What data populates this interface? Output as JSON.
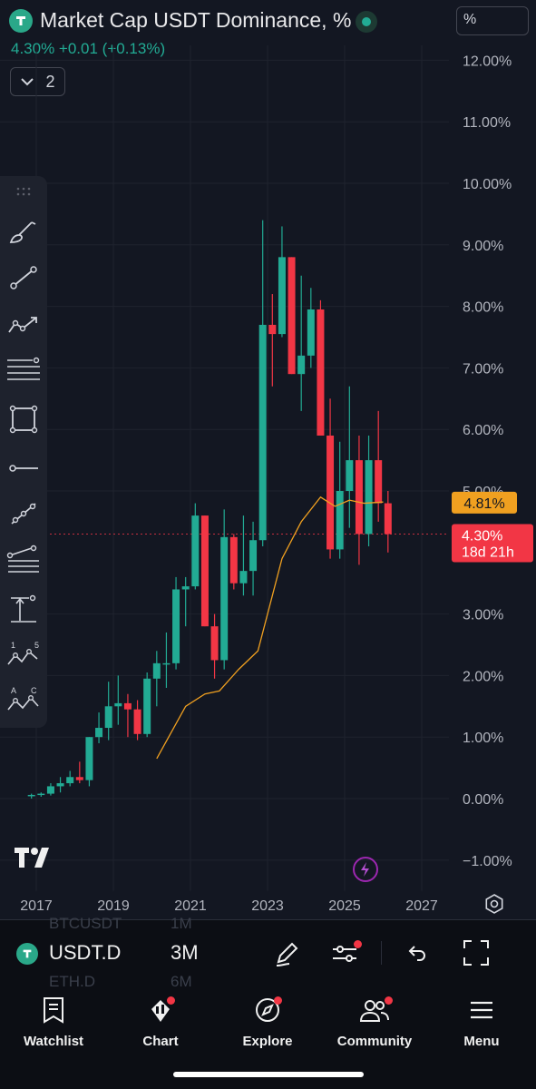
{
  "header": {
    "title": "Market Cap USDT Dominance, %",
    "price_line": "4.30%  +0.01 (+0.13%)",
    "scale_button": "%",
    "indicators_count": "2"
  },
  "chart_data": {
    "type": "candlestick",
    "symbol": "USDT.D",
    "interval": "3M",
    "y_ticks": [
      "12.00%",
      "11.00%",
      "10.00%",
      "9.00%",
      "8.00%",
      "7.00%",
      "6.00%",
      "5.00%",
      "3.00%",
      "2.00%",
      "1.00%",
      "0.00%",
      "−1.00%"
    ],
    "y_tick_values": [
      12,
      11,
      10,
      9,
      8,
      7,
      6,
      5,
      3,
      2,
      1,
      0,
      -1
    ],
    "x_ticks": [
      "2017",
      "2019",
      "2021",
      "2023",
      "2025",
      "2027"
    ],
    "x_tick_years": [
      2017,
      2019,
      2021,
      2023,
      2025,
      2027
    ],
    "ylim": [
      -1.5,
      12.5
    ],
    "candles": [
      {
        "t": 2016.875,
        "o": 0.05,
        "h": 0.08,
        "l": 0.0,
        "c": 0.06
      },
      {
        "t": 2017.125,
        "o": 0.06,
        "h": 0.1,
        "l": 0.03,
        "c": 0.08
      },
      {
        "t": 2017.375,
        "o": 0.08,
        "h": 0.25,
        "l": 0.05,
        "c": 0.2
      },
      {
        "t": 2017.625,
        "o": 0.2,
        "h": 0.35,
        "l": 0.1,
        "c": 0.25
      },
      {
        "t": 2017.875,
        "o": 0.25,
        "h": 0.45,
        "l": 0.2,
        "c": 0.35
      },
      {
        "t": 2018.125,
        "o": 0.35,
        "h": 0.6,
        "l": 0.25,
        "c": 0.3
      },
      {
        "t": 2018.375,
        "o": 0.3,
        "h": 1.0,
        "l": 0.2,
        "c": 1.0
      },
      {
        "t": 2018.625,
        "o": 1.0,
        "h": 1.4,
        "l": 0.9,
        "c": 1.15
      },
      {
        "t": 2018.875,
        "o": 1.15,
        "h": 1.9,
        "l": 0.95,
        "c": 1.5
      },
      {
        "t": 2019.125,
        "o": 1.5,
        "h": 2.0,
        "l": 1.2,
        "c": 1.55
      },
      {
        "t": 2019.375,
        "o": 1.55,
        "h": 1.7,
        "l": 1.0,
        "c": 1.45
      },
      {
        "t": 2019.625,
        "o": 1.45,
        "h": 1.6,
        "l": 0.95,
        "c": 1.05
      },
      {
        "t": 2019.875,
        "o": 1.05,
        "h": 2.05,
        "l": 1.0,
        "c": 1.95
      },
      {
        "t": 2020.125,
        "o": 1.95,
        "h": 2.4,
        "l": 1.5,
        "c": 2.2
      },
      {
        "t": 2020.375,
        "o": 2.2,
        "h": 2.7,
        "l": 1.8,
        "c": 2.2
      },
      {
        "t": 2020.625,
        "o": 2.2,
        "h": 3.6,
        "l": 2.1,
        "c": 3.4
      },
      {
        "t": 2020.875,
        "o": 3.4,
        "h": 3.6,
        "l": 2.8,
        "c": 3.45
      },
      {
        "t": 2021.125,
        "o": 3.45,
        "h": 4.8,
        "l": 3.4,
        "c": 4.6
      },
      {
        "t": 2021.375,
        "o": 4.6,
        "h": 4.6,
        "l": 2.8,
        "c": 2.8
      },
      {
        "t": 2021.625,
        "o": 2.8,
        "h": 3.0,
        "l": 1.95,
        "c": 2.25
      },
      {
        "t": 2021.875,
        "o": 2.25,
        "h": 4.7,
        "l": 2.1,
        "c": 4.25
      },
      {
        "t": 2022.125,
        "o": 4.25,
        "h": 4.3,
        "l": 3.4,
        "c": 3.5
      },
      {
        "t": 2022.375,
        "o": 3.5,
        "h": 4.6,
        "l": 3.3,
        "c": 3.7
      },
      {
        "t": 2022.625,
        "o": 3.7,
        "h": 4.5,
        "l": 3.3,
        "c": 4.2
      },
      {
        "t": 2022.875,
        "o": 4.2,
        "h": 9.4,
        "l": 4.1,
        "c": 7.7
      },
      {
        "t": 2023.125,
        "o": 7.7,
        "h": 8.2,
        "l": 6.7,
        "c": 7.55
      },
      {
        "t": 2023.375,
        "o": 7.55,
        "h": 9.3,
        "l": 7.5,
        "c": 8.8
      },
      {
        "t": 2023.625,
        "o": 8.8,
        "h": 8.8,
        "l": 6.9,
        "c": 6.9
      },
      {
        "t": 2023.875,
        "o": 6.9,
        "h": 8.5,
        "l": 6.3,
        "c": 7.2
      },
      {
        "t": 2024.125,
        "o": 7.2,
        "h": 8.3,
        "l": 7.0,
        "c": 7.95
      },
      {
        "t": 2024.375,
        "o": 7.95,
        "h": 8.1,
        "l": 5.9,
        "c": 5.9
      },
      {
        "t": 2024.625,
        "o": 5.9,
        "h": 6.5,
        "l": 3.9,
        "c": 4.05
      },
      {
        "t": 2024.875,
        "o": 4.05,
        "h": 5.8,
        "l": 3.9,
        "c": 5.0
      },
      {
        "t": 2025.125,
        "o": 5.0,
        "h": 6.7,
        "l": 4.4,
        "c": 5.5
      },
      {
        "t": 2025.375,
        "o": 5.5,
        "h": 5.9,
        "l": 3.8,
        "c": 4.3
      },
      {
        "t": 2025.625,
        "o": 4.3,
        "h": 5.9,
        "l": 4.1,
        "c": 5.5
      },
      {
        "t": 2025.875,
        "o": 5.5,
        "h": 6.3,
        "l": 4.5,
        "c": 4.8
      },
      {
        "t": 2026.125,
        "o": 4.8,
        "h": 5.0,
        "l": 4.0,
        "c": 4.3
      }
    ],
    "ma": {
      "color": "#f0a020",
      "points": [
        [
          2020.125,
          0.65
        ],
        [
          2020.875,
          1.5
        ],
        [
          2021.375,
          1.7
        ],
        [
          2021.75,
          1.75
        ],
        [
          2022.25,
          2.1
        ],
        [
          2022.75,
          2.4
        ],
        [
          2023.375,
          3.9
        ],
        [
          2023.875,
          4.5
        ],
        [
          2024.375,
          4.9
        ],
        [
          2024.75,
          4.75
        ],
        [
          2025.125,
          4.85
        ],
        [
          2025.5,
          4.8
        ],
        [
          2026.0,
          4.82
        ]
      ]
    },
    "current_value": 4.3,
    "ma_value": 4.81,
    "ma_label": "4.81%",
    "price_label": "4.30%",
    "countdown": "18d 21h"
  },
  "symbol_bar": {
    "symbol": "USDT.D",
    "interval": "3M",
    "ghost_rows": [
      {
        "symbol": "BTCUSDT",
        "interval": "1M"
      },
      {
        "symbol": "ETH.D",
        "interval": "6M"
      }
    ]
  },
  "bottom_nav": [
    {
      "label": "Watchlist"
    },
    {
      "label": "Chart"
    },
    {
      "label": "Explore"
    },
    {
      "label": "Community"
    },
    {
      "label": "Menu"
    }
  ],
  "colors": {
    "up": "#22ab94",
    "down": "#f23645",
    "ma": "#f0a020",
    "background": "#131722"
  }
}
